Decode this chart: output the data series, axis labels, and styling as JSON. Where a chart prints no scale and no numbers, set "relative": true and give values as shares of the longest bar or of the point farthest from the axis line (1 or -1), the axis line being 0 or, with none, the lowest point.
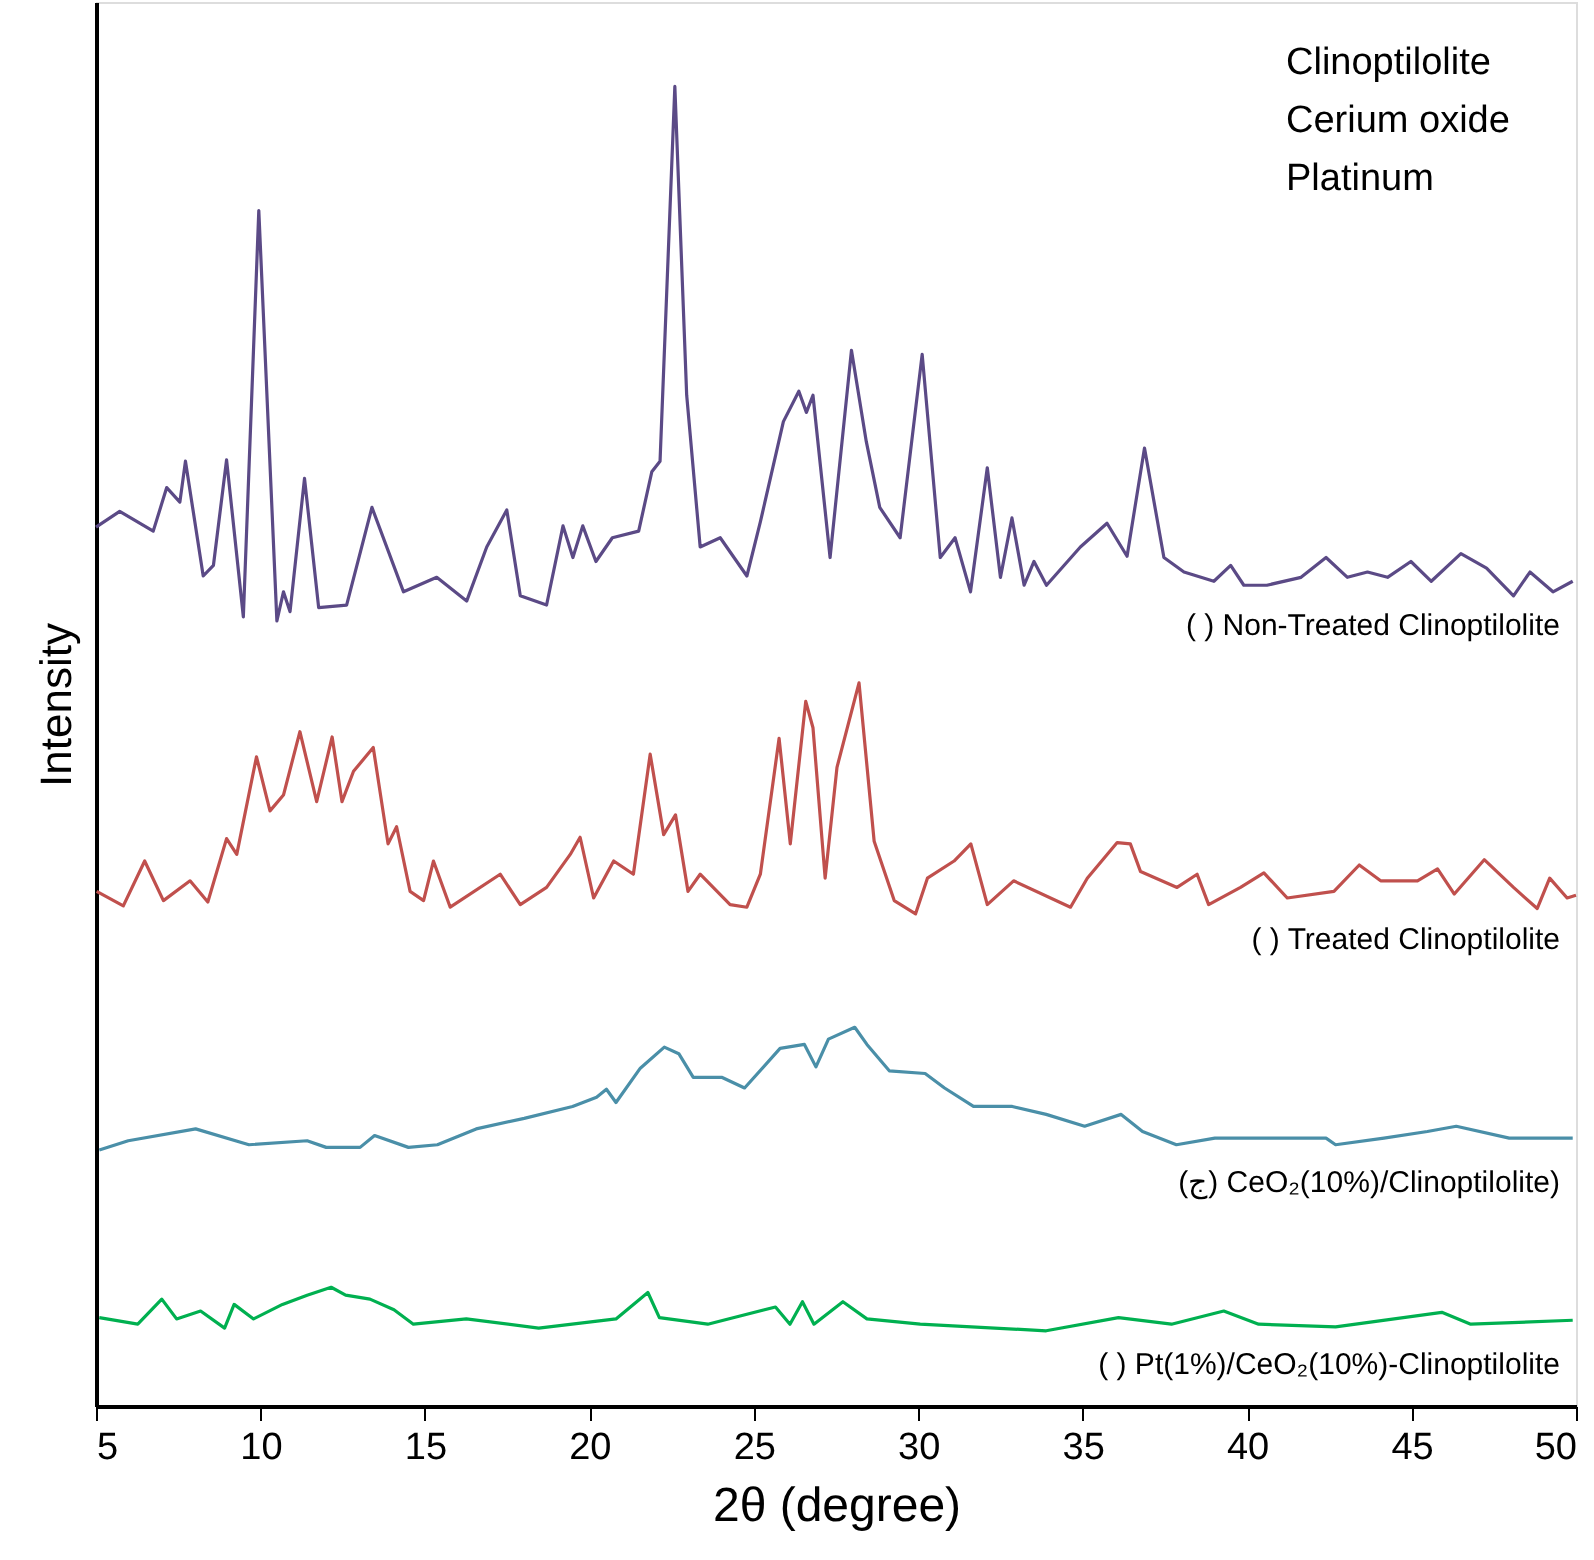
{
  "chart_data": {
    "type": "line",
    "relative": true,
    "xlabel": "2θ (degree)",
    "ylabel": "Intensity",
    "xlim": [
      5,
      50
    ],
    "xticks": [
      5,
      10,
      15,
      20,
      25,
      30,
      35,
      40,
      45,
      50
    ],
    "grid": false,
    "legend": false,
    "tick_labels": "x",
    "marker": "none",
    "line_style": "solid",
    "annotations": [
      "Clinoptilolite",
      "Cerium oxide",
      "Platinum"
    ],
    "series": [
      {
        "name": "(    ) Non-Treated Clinoptilolite",
        "color": "#5b4a86",
        "x": [
          5.0,
          5.72,
          6.74,
          7.15,
          7.55,
          7.72,
          8.26,
          8.57,
          8.97,
          9.48,
          9.95,
          10.5,
          10.7,
          10.9,
          11.34,
          11.77,
          12.62,
          13.39,
          14.35,
          15.36,
          16.27,
          16.88,
          17.49,
          17.9,
          18.7,
          19.2,
          19.5,
          19.8,
          20.2,
          20.7,
          21.5,
          21.9,
          22.15,
          22.6,
          22.96,
          23.37,
          23.98,
          24.79,
          25.2,
          25.9,
          26.37,
          26.6,
          26.8,
          27.32,
          27.97,
          28.42,
          28.83,
          29.45,
          30.12,
          30.67,
          31.12,
          31.59,
          32.1,
          32.5,
          32.85,
          33.22,
          33.52,
          33.9,
          34.93,
          35.74,
          36.35,
          36.88,
          37.47,
          38.08,
          38.99,
          39.5,
          39.9,
          40.6,
          41.64,
          42.4,
          43.05,
          43.66,
          44.27,
          44.98,
          45.6,
          46.5,
          47.28,
          48.1,
          48.6,
          49.3,
          49.9
        ],
        "values": [
          0.666,
          0.678,
          0.663,
          0.696,
          0.685,
          0.716,
          0.629,
          0.637,
          0.717,
          0.598,
          0.906,
          0.595,
          0.617,
          0.602,
          0.703,
          0.605,
          0.607,
          0.681,
          0.617,
          0.628,
          0.61,
          0.651,
          0.679,
          0.614,
          0.607,
          0.667,
          0.643,
          0.667,
          0.64,
          0.658,
          0.663,
          0.708,
          0.716,
          1.0,
          0.766,
          0.651,
          0.658,
          0.629,
          0.67,
          0.746,
          0.769,
          0.753,
          0.766,
          0.643,
          0.8,
          0.731,
          0.681,
          0.658,
          0.797,
          0.643,
          0.658,
          0.617,
          0.711,
          0.628,
          0.673,
          0.622,
          0.64,
          0.622,
          0.651,
          0.669,
          0.644,
          0.726,
          0.643,
          0.632,
          0.625,
          0.637,
          0.622,
          0.622,
          0.628,
          0.643,
          0.628,
          0.632,
          0.628,
          0.64,
          0.625,
          0.646,
          0.635,
          0.614,
          0.632,
          0.617,
          0.625
        ]
      },
      {
        "name": "( ) Treated Clinoptilolite",
        "color": "#c0504d",
        "x": [
          5.02,
          5.83,
          6.48,
          7.05,
          7.86,
          8.4,
          8.97,
          9.28,
          9.88,
          10.29,
          10.7,
          11.2,
          11.71,
          12.18,
          12.48,
          12.83,
          13.43,
          13.88,
          14.14,
          14.55,
          14.96,
          15.26,
          15.77,
          17.29,
          17.9,
          18.7,
          19.42,
          19.72,
          20.13,
          20.74,
          21.34,
          21.85,
          22.26,
          22.62,
          23.0,
          23.37,
          24.28,
          24.79,
          25.2,
          25.77,
          26.11,
          26.58,
          26.8,
          27.17,
          27.53,
          28.2,
          28.66,
          29.27,
          29.92,
          30.28,
          31.09,
          31.6,
          32.1,
          32.9,
          34.63,
          35.14,
          36.05,
          36.45,
          36.76,
          37.87,
          38.48,
          38.83,
          39.8,
          40.51,
          41.22,
          42.64,
          43.41,
          44.06,
          45.18,
          45.79,
          46.3,
          47.21,
          48.1,
          48.82,
          49.2,
          49.73,
          50.0
        ],
        "values": [
          0.39,
          0.379,
          0.413,
          0.383,
          0.398,
          0.382,
          0.43,
          0.418,
          0.492,
          0.451,
          0.463,
          0.511,
          0.458,
          0.507,
          0.458,
          0.481,
          0.499,
          0.426,
          0.439,
          0.39,
          0.383,
          0.413,
          0.378,
          0.403,
          0.38,
          0.393,
          0.418,
          0.431,
          0.385,
          0.413,
          0.403,
          0.494,
          0.433,
          0.448,
          0.39,
          0.403,
          0.38,
          0.378,
          0.403,
          0.506,
          0.426,
          0.534,
          0.514,
          0.4,
          0.484,
          0.548,
          0.428,
          0.383,
          0.373,
          0.4,
          0.413,
          0.426,
          0.38,
          0.398,
          0.378,
          0.4,
          0.427,
          0.426,
          0.405,
          0.393,
          0.403,
          0.38,
          0.393,
          0.404,
          0.385,
          0.39,
          0.41,
          0.398,
          0.398,
          0.407,
          0.388,
          0.414,
          0.393,
          0.377,
          0.4,
          0.385,
          0.387
        ]
      },
      {
        "name": "(ج) CeO₂(10%)/Clinoptilolite)",
        "color": "#4a8fa8",
        "x": [
          5.1,
          5.98,
          8.03,
          9.65,
          11.42,
          12.0,
          13.03,
          13.47,
          14.5,
          15.38,
          16.56,
          18.02,
          19.49,
          20.22,
          20.52,
          20.81,
          21.55,
          22.28,
          22.72,
          23.16,
          24.04,
          24.72,
          25.8,
          26.54,
          26.89,
          27.27,
          28.07,
          28.44,
          29.12,
          30.21,
          30.8,
          31.68,
          32.86,
          33.89,
          35.06,
          36.17,
          36.82,
          37.85,
          39.02,
          40.64,
          42.4,
          42.69,
          44.16,
          45.48,
          46.36,
          47.97,
          49.9
        ],
        "values": [
          0.194,
          0.201,
          0.21,
          0.198,
          0.201,
          0.196,
          0.196,
          0.205,
          0.196,
          0.198,
          0.21,
          0.218,
          0.227,
          0.234,
          0.24,
          0.23,
          0.256,
          0.272,
          0.267,
          0.249,
          0.249,
          0.241,
          0.271,
          0.274,
          0.257,
          0.278,
          0.287,
          0.274,
          0.254,
          0.252,
          0.241,
          0.227,
          0.227,
          0.221,
          0.212,
          0.221,
          0.208,
          0.198,
          0.203,
          0.203,
          0.203,
          0.198,
          0.203,
          0.208,
          0.212,
          0.203,
          0.203
        ]
      },
      {
        "name": "( ) Pt(1%)/CeO₂(10%)-Clinoptilolite",
        "color": "#00b050",
        "x": [
          5.1,
          6.27,
          7.0,
          7.45,
          8.18,
          8.91,
          9.2,
          9.79,
          10.67,
          11.42,
          12.15,
          12.59,
          13.33,
          14.06,
          14.65,
          16.26,
          18.46,
          20.81,
          21.78,
          22.13,
          23.6,
          25.66,
          26.1,
          26.48,
          26.83,
          27.71,
          28.44,
          30.06,
          33.89,
          36.09,
          37.7,
          39.29,
          40.35,
          42.69,
          45.92,
          46.8,
          49.9
        ],
        "values": [
          0.067,
          0.062,
          0.081,
          0.066,
          0.072,
          0.059,
          0.077,
          0.066,
          0.077,
          0.084,
          0.09,
          0.084,
          0.081,
          0.073,
          0.062,
          0.066,
          0.059,
          0.066,
          0.086,
          0.067,
          0.062,
          0.075,
          0.062,
          0.079,
          0.062,
          0.079,
          0.066,
          0.062,
          0.057,
          0.067,
          0.062,
          0.072,
          0.062,
          0.06,
          0.071,
          0.062,
          0.065
        ]
      }
    ]
  }
}
